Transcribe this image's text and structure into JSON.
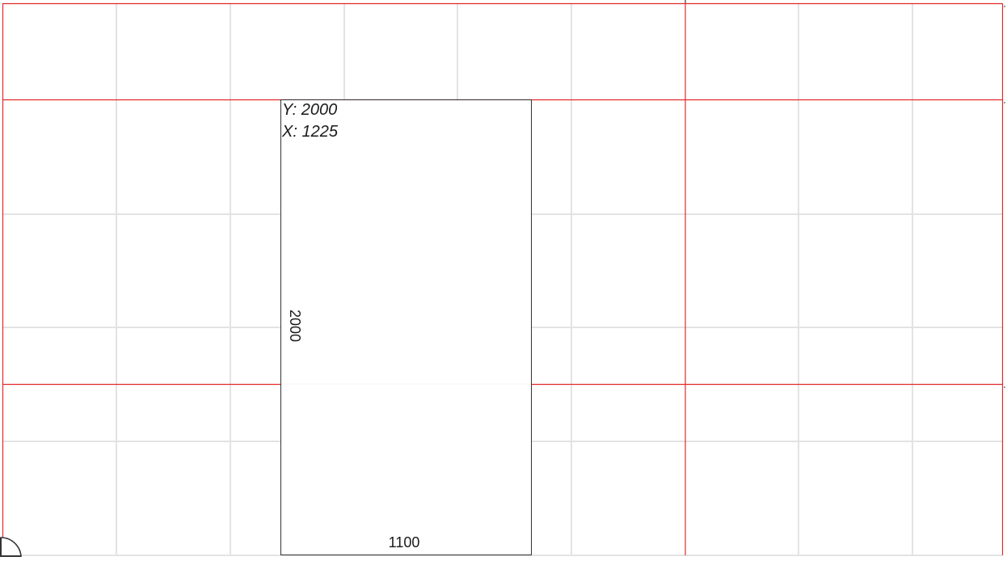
{
  "colors": {
    "background": "#ffffff",
    "grid_minor": "#e3e3e3",
    "grid_major": "#e32a2a",
    "panel_outline": "#333333",
    "text": "#1a1a1a"
  },
  "panel": {
    "coords": {
      "y_label": "Y: 2000",
      "x_label": "X: 1225"
    },
    "height_label": "2000",
    "width_label": "1100"
  },
  "icons": {
    "origin": "quarter-circle-origin-icon"
  }
}
